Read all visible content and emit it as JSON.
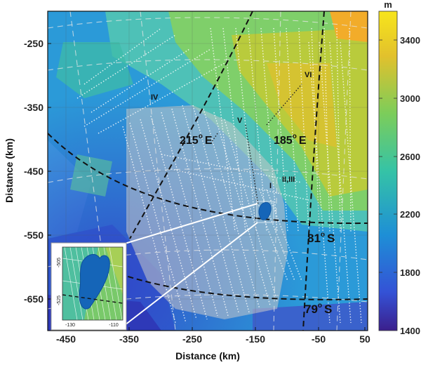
{
  "map": {
    "x_axis": {
      "label": "Distance (km)",
      "ticks": [
        "-450",
        "-350",
        "-250",
        "-150",
        "-50",
        "50"
      ]
    },
    "y_axis": {
      "label": "Distance (km)",
      "ticks": [
        "-250",
        "-350",
        "-450",
        "-550",
        "-650"
      ]
    },
    "annotations": {
      "meridian_215": "215",
      "meridian_215_suffix": "E",
      "meridian_185": "185",
      "meridian_185_suffix": "E",
      "parallel_81": "81",
      "parallel_81_suffix": "S",
      "parallel_79": "79",
      "parallel_79_suffix": "S",
      "degree_symbol": "o"
    },
    "line_labels": {
      "I": "I",
      "II_III": "II,III",
      "IV": "IV",
      "V": "V",
      "VI": "VI"
    },
    "inset": {
      "x_ticks": [
        "-130",
        "-110"
      ],
      "y_ticks": [
        "-505",
        "-525"
      ]
    }
  },
  "colorbar": {
    "unit": "m",
    "ticks": [
      "3400",
      "3000",
      "2600",
      "2200",
      "1800",
      "1400"
    ],
    "range": [
      1400,
      3600
    ]
  },
  "colors": {
    "low": "#3b1f8c",
    "mid_low": "#1e8fd6",
    "mid": "#35c3a6",
    "mid_high": "#7ccd5a",
    "high": "#e2c12c",
    "top": "#f7e51c",
    "shade": "#bdbdbd"
  }
}
